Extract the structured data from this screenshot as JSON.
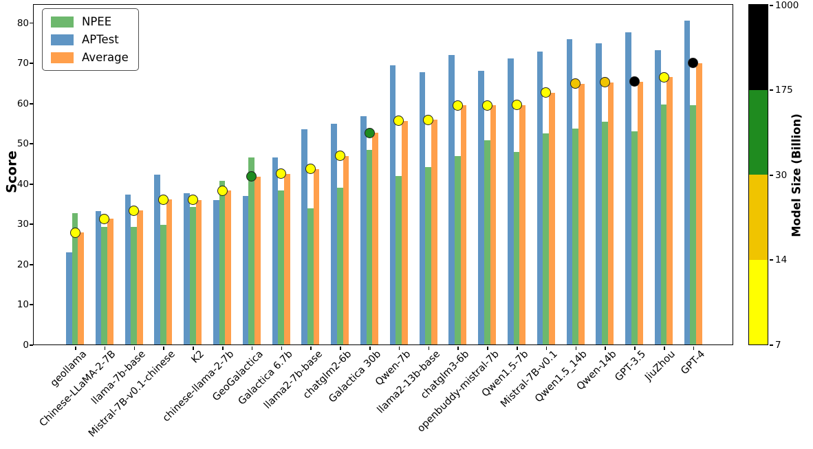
{
  "chart_data": {
    "type": "bar",
    "title": "",
    "xlabel": "",
    "ylabel": "Score",
    "ylim": [
      0,
      84.4
    ],
    "yticks": [
      0,
      10,
      20,
      30,
      40,
      50,
      60,
      70,
      80
    ],
    "grid": false,
    "legend_position": "upper left",
    "bar_order_left_to_right": [
      "APTest",
      "NPEE",
      "Average"
    ],
    "categories": [
      "geollama",
      "Chinese-LLaMA-2-7B",
      "llama-7b-base",
      "Mistral-7B-v0.1-chinese",
      "K2",
      "chinese-llama-2-7b",
      "GeoGalactica",
      "Galactica 6.7b",
      "llama2-7b-base",
      "chatglm2-6b",
      "Galactica 30b",
      "Qwen-7b",
      "llama2-13b-base",
      "chatglm3-6b",
      "openbuddy-mistral-7b",
      "Qwen1.5-7b",
      "Mistral-7B-v0.1",
      "Qwen1.5_14b",
      "Qwen-14b",
      "GPT-3.5",
      "JiuZhou",
      "GPT-4"
    ],
    "series": [
      {
        "name": "NPEE",
        "color": "#6db86d",
        "values": [
          32.6,
          29.3,
          29.3,
          29.8,
          34.2,
          40.6,
          46.5,
          38.3,
          33.9,
          39.0,
          48.4,
          41.8,
          44.0,
          46.9,
          50.8,
          47.9,
          52.5,
          53.7,
          55.4,
          53.0,
          59.7,
          59.4
        ]
      },
      {
        "name": "APTest",
        "color": "#5f95c4",
        "values": [
          22.9,
          33.1,
          37.3,
          42.2,
          37.6,
          35.8,
          36.9,
          46.5,
          53.4,
          54.8,
          56.8,
          69.4,
          67.6,
          71.9,
          68.0,
          71.1,
          72.7,
          75.9,
          74.8,
          77.6,
          73.1,
          80.4
        ]
      },
      {
        "name": "Average",
        "color": "#ff9f4b",
        "values": [
          27.8,
          31.2,
          33.3,
          36.0,
          35.9,
          38.2,
          41.7,
          42.4,
          43.6,
          46.9,
          52.6,
          55.6,
          55.8,
          59.4,
          59.4,
          59.5,
          62.6,
          64.8,
          65.1,
          65.3,
          66.4,
          69.9
        ]
      }
    ],
    "markers": {
      "plotted_at_series": "Average",
      "meaning": "model size bin from colorbar",
      "palette": {
        "yellow": "#ffff00",
        "gold": "#f0c400",
        "green": "#1f8b1f",
        "black": "#000000"
      },
      "colors": [
        "yellow",
        "yellow",
        "yellow",
        "yellow",
        "yellow",
        "yellow",
        "green",
        "yellow",
        "yellow",
        "yellow",
        "green",
        "yellow",
        "yellow",
        "yellow",
        "yellow",
        "yellow",
        "yellow",
        "gold",
        "gold",
        "black",
        "yellow",
        "black"
      ]
    },
    "colorbar": {
      "label": "Model Size (Billion)",
      "tick_labels_top_to_bottom": [
        "1000",
        "175",
        "30",
        "14",
        "7"
      ],
      "segment_colors_top_to_bottom": [
        "#000000",
        "#1f8b1f",
        "#f0c400",
        "#ffff00"
      ],
      "segment_ranges_top_to_bottom": [
        "175-1000",
        "30-175",
        "14-30",
        "7-14"
      ]
    }
  }
}
